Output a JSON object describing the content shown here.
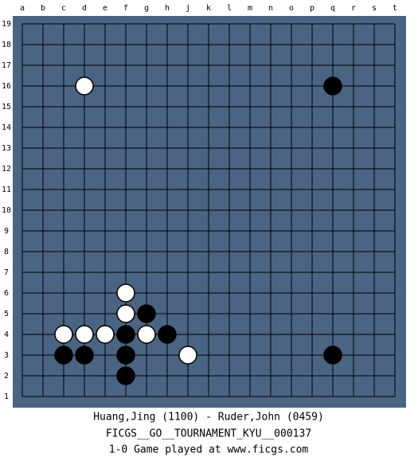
{
  "board": {
    "columns": [
      "a",
      "b",
      "c",
      "d",
      "e",
      "f",
      "g",
      "h",
      "j",
      "k",
      "l",
      "m",
      "n",
      "o",
      "p",
      "q",
      "r",
      "s",
      "t"
    ],
    "rows": [
      19,
      18,
      17,
      16,
      15,
      14,
      13,
      12,
      11,
      10,
      9,
      8,
      7,
      6,
      5,
      4,
      3,
      2,
      1
    ],
    "stones": [
      {
        "color": "white",
        "col": "d",
        "row": 16
      },
      {
        "color": "black",
        "col": "q",
        "row": 16
      },
      {
        "color": "white",
        "col": "f",
        "row": 6
      },
      {
        "color": "white",
        "col": "f",
        "row": 5
      },
      {
        "color": "black",
        "col": "g",
        "row": 5
      },
      {
        "color": "white",
        "col": "c",
        "row": 4
      },
      {
        "color": "white",
        "col": "d",
        "row": 4
      },
      {
        "color": "white",
        "col": "e",
        "row": 4
      },
      {
        "color": "black",
        "col": "f",
        "row": 4
      },
      {
        "color": "white",
        "col": "g",
        "row": 4
      },
      {
        "color": "black",
        "col": "h",
        "row": 4
      },
      {
        "color": "black",
        "col": "c",
        "row": 3
      },
      {
        "color": "black",
        "col": "d",
        "row": 3
      },
      {
        "color": "black",
        "col": "f",
        "row": 3
      },
      {
        "color": "white",
        "col": "j",
        "row": 3
      },
      {
        "color": "black",
        "col": "q",
        "row": 3
      },
      {
        "color": "black",
        "col": "f",
        "row": 2
      }
    ]
  },
  "caption": {
    "lines": [
      "Huang,Jing (1100) - Ruder,John (0459)",
      "FICGS__GO__TOURNAMENT_KYU__000137",
      "1-0   Game played at www.ficgs.com"
    ]
  }
}
